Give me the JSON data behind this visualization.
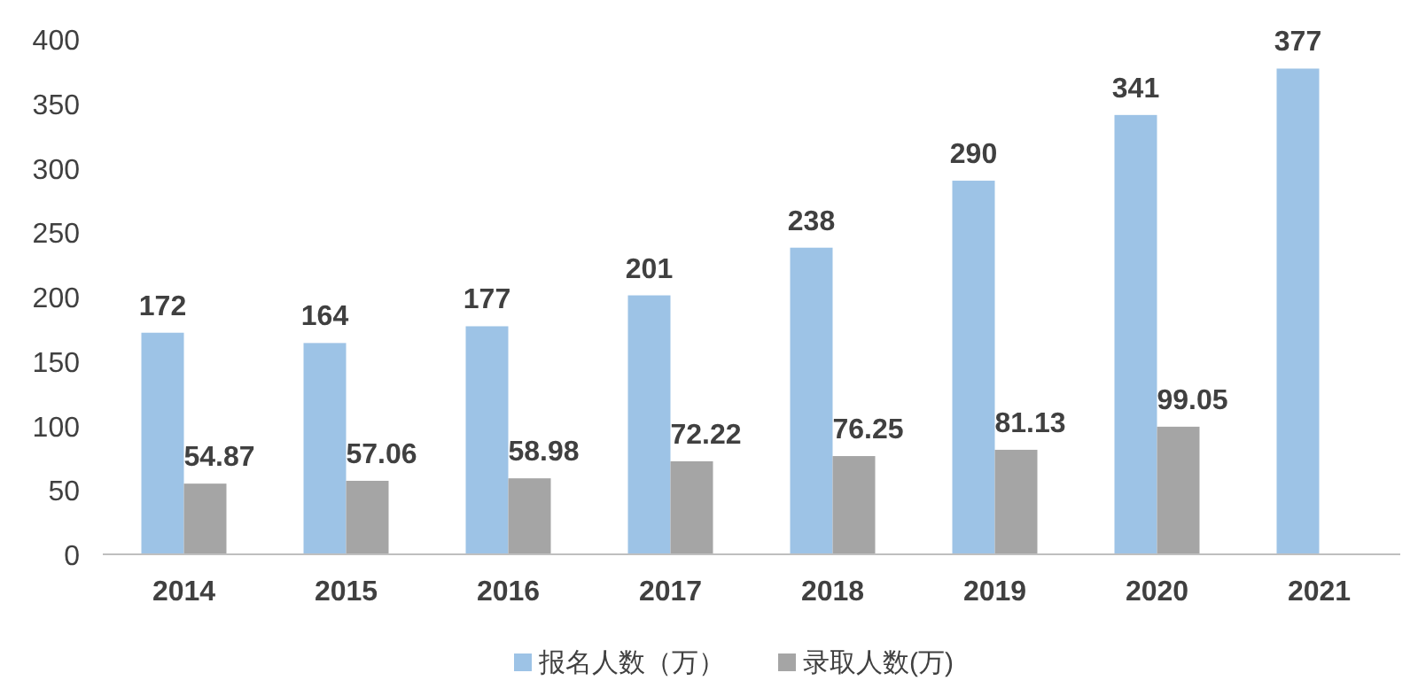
{
  "chart_data": {
    "type": "bar",
    "categories": [
      "2014",
      "2015",
      "2016",
      "2017",
      "2018",
      "2019",
      "2020",
      "2021"
    ],
    "series": [
      {
        "name": "报名人数（万）",
        "color": "#9dc3e6",
        "values": [
          172,
          164,
          177,
          201,
          238,
          290,
          341,
          377
        ]
      },
      {
        "name": "录取人数(万)",
        "color": "#a5a5a5",
        "values": [
          54.87,
          57.06,
          58.98,
          72.22,
          76.25,
          81.13,
          99.05,
          null
        ]
      }
    ],
    "ylim": [
      0,
      400
    ],
    "yticks": [
      0,
      50,
      100,
      150,
      200,
      250,
      300,
      350,
      400
    ],
    "data_labels": true,
    "legend": "bottom",
    "grid": false
  }
}
